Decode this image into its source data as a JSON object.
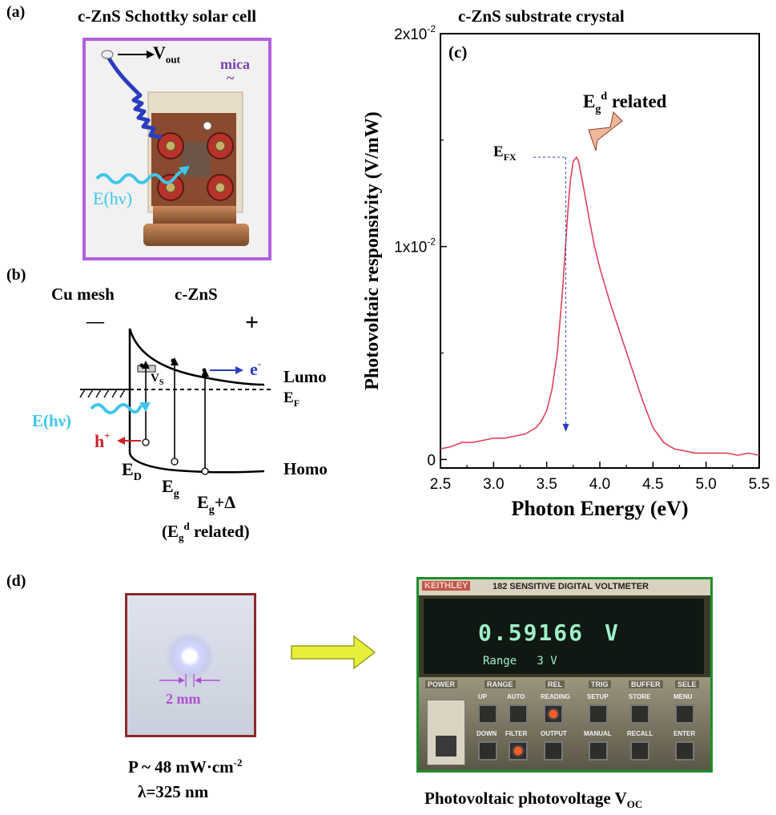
{
  "panel_a": {
    "label": "(a)",
    "title": "c-ZnS Schottky solar cell",
    "vout_main": "V",
    "vout_sub": "out",
    "mica": "mica",
    "mica_tilde": "~",
    "light": "E(hν)"
  },
  "panel_b": {
    "label": "(b)",
    "cu_mesh": "Cu mesh",
    "czns": "c-ZnS",
    "minus": "—",
    "plus": "+",
    "vs_main": "V",
    "vs_sub": "S",
    "electron": "e",
    "electron_sup": "-",
    "lumo": "Lumo",
    "ef_main": "E",
    "ef_sub": "F",
    "light": "E(hν)",
    "hole": "h",
    "hole_sup": "+",
    "ed_main": "E",
    "ed_sub": "D",
    "eg_main": "E",
    "eg_sub": "g",
    "egd_main": "E",
    "egd_sub": "g",
    "egd_plus": "+Δ",
    "homo": "Homo",
    "related_open": "(E",
    "related_sub": "g",
    "related_sup": "d",
    "related_close": " related)"
  },
  "panel_c": {
    "label": "(c)",
    "title": "c-ZnS substrate crystal",
    "annotation_main": "E",
    "annotation_sub": "g",
    "annotation_sup": "d",
    "annotation_rest": " related",
    "efx_main": "E",
    "efx_sub": "FX"
  },
  "panel_d": {
    "label": "(d)",
    "spot_size": "2 mm",
    "power_main": "P ~ 48 mW·cm",
    "power_sup": "-2",
    "wavelength": "λ=325 nm",
    "caption_main": "Photovoltaic photovoltage V",
    "caption_sub": "OC",
    "meter_brand": "KEITHLEY",
    "meter_model": "182 SENSITIVE DIGITAL VOLTMETER",
    "meter_reading": "0.59166",
    "meter_unit": "V",
    "meter_range": "Range   3 V",
    "section_power": "POWER",
    "section_range": "RANGE",
    "section_rel": "REL",
    "section_trig": "TRIG",
    "section_buffer": "BUFFER",
    "section_sel": "SELE",
    "btn_up": "UP",
    "btn_auto": "AUTO",
    "btn_reading": "READING",
    "btn_setup": "SETUP",
    "btn_store": "STORE",
    "btn_menu": "MENU",
    "btn_down": "DOWN",
    "btn_filter": "FILTER",
    "btn_output": "OUTPUT",
    "btn_manual": "MANUAL",
    "btn_recall": "RECALL",
    "btn_enter": "ENTER"
  },
  "chart_data": {
    "type": "line",
    "title": "c-ZnS substrate crystal",
    "xlabel": "Photon Energy (eV)",
    "ylabel": "Photovoltaic responsivity (V/mW)",
    "xlim": [
      2.5,
      5.5
    ],
    "ylim": [
      -0.0004,
      0.02
    ],
    "x_ticks": [
      "2.5",
      "3.0",
      "3.5",
      "4.0",
      "4.5",
      "5.0",
      "5.5"
    ],
    "y_ticks": [
      {
        "value": 0,
        "label": "0"
      },
      {
        "value": 0.01,
        "label": "1x10",
        "exp": "-2"
      },
      {
        "value": 0.02,
        "label": "2x10",
        "exp": "-2"
      }
    ],
    "grid": false,
    "series_color": "#e0405a",
    "marker_x": 3.68,
    "x": [
      2.5,
      2.6,
      2.7,
      2.8,
      2.9,
      3.0,
      3.1,
      3.2,
      3.3,
      3.4,
      3.45,
      3.5,
      3.55,
      3.6,
      3.65,
      3.7,
      3.72,
      3.75,
      3.78,
      3.8,
      3.85,
      3.9,
      3.95,
      4.0,
      4.1,
      4.2,
      4.3,
      4.4,
      4.5,
      4.6,
      4.7,
      4.8,
      4.9,
      5.0,
      5.1,
      5.2,
      5.3,
      5.4,
      5.5
    ],
    "y": [
      0.0005,
      0.0006,
      0.0008,
      0.0008,
      0.0009,
      0.001,
      0.001,
      0.0011,
      0.0012,
      0.0015,
      0.0018,
      0.0023,
      0.0033,
      0.005,
      0.008,
      0.0117,
      0.013,
      0.014,
      0.0142,
      0.014,
      0.0127,
      0.0113,
      0.01,
      0.009,
      0.0073,
      0.0058,
      0.0043,
      0.0028,
      0.0015,
      0.0008,
      0.0005,
      0.0004,
      0.0003,
      0.0003,
      0.0003,
      0.0003,
      0.0002,
      0.0003,
      0.0002
    ]
  }
}
